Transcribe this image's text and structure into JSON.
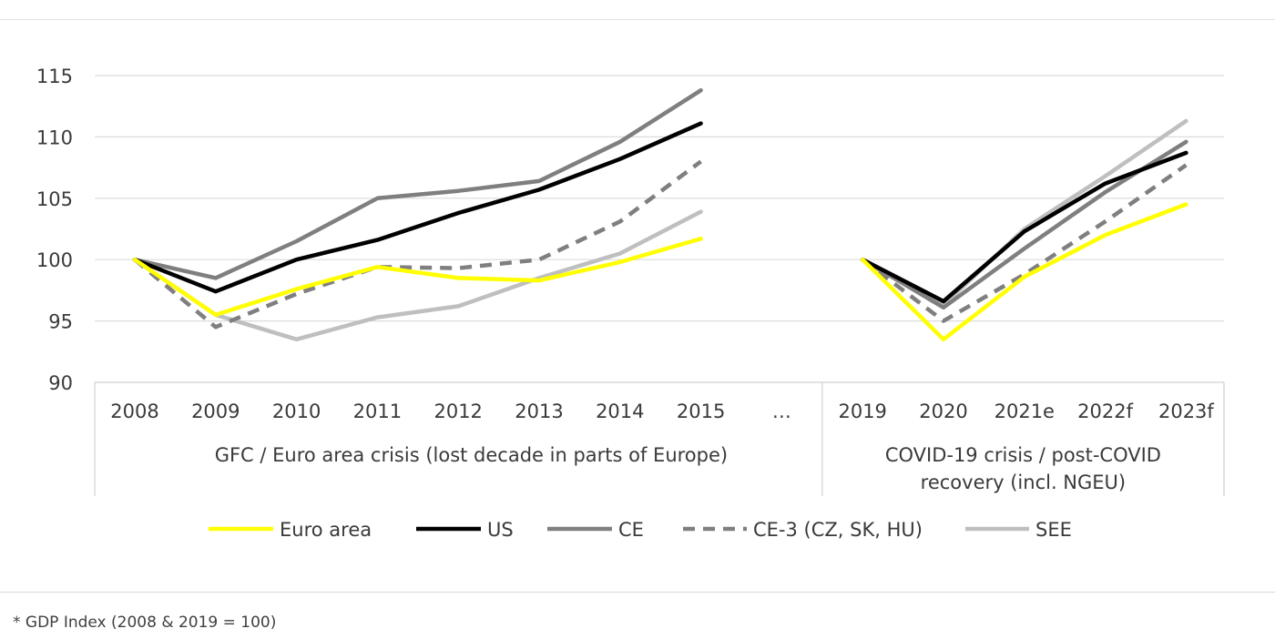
{
  "chart_data": {
    "type": "line",
    "categories": [
      "2008",
      "2009",
      "2010",
      "2011",
      "2012",
      "2013",
      "2014",
      "2015",
      "…",
      "2019",
      "2020",
      "2021e",
      "2022f",
      "2023f"
    ],
    "groups": [
      {
        "label": "GFC / Euro area crisis (lost decade in parts of Europe)"
      },
      {
        "label": "COVID-19 crisis / post-COVID recovery (incl. NGEU)",
        "label_lines": [
          "COVID-19 crisis / post-COVID",
          "recovery (incl. NGEU)"
        ]
      }
    ],
    "ylim": [
      90,
      115
    ],
    "yticks": [
      90,
      95,
      100,
      105,
      110,
      115
    ],
    "grid": true,
    "legend_position": "bottom",
    "series": [
      {
        "name": "Euro area",
        "color": "#ffff00",
        "dashed": false,
        "values": [
          100,
          95.5,
          97.6,
          99.4,
          98.5,
          98.3,
          99.8,
          101.7,
          null,
          100,
          93.5,
          98.6,
          102.0,
          104.5
        ]
      },
      {
        "name": "US",
        "color": "#000000",
        "dashed": false,
        "values": [
          100,
          97.4,
          100.0,
          101.6,
          103.8,
          105.7,
          108.2,
          111.1,
          null,
          100,
          96.6,
          102.3,
          106.2,
          108.7
        ]
      },
      {
        "name": "CE",
        "color": "#7f7f7f",
        "dashed": false,
        "values": [
          100,
          98.5,
          101.5,
          105.0,
          105.6,
          106.4,
          109.6,
          113.8,
          null,
          100,
          96.1,
          100.9,
          105.5,
          109.6
        ]
      },
      {
        "name": "CE-3 (CZ, SK, HU)",
        "color": "#7f7f7f",
        "dashed": true,
        "values": [
          100,
          94.5,
          97.2,
          99.4,
          99.3,
          100.0,
          103.1,
          108.0,
          null,
          100,
          95.0,
          98.8,
          103.1,
          107.7
        ]
      },
      {
        "name": "SEE",
        "color": "#bfbfbf",
        "dashed": false,
        "values": [
          100,
          95.5,
          93.5,
          95.3,
          96.2,
          98.5,
          100.5,
          103.9,
          null,
          100,
          96.3,
          102.5,
          106.8,
          111.3
        ]
      }
    ]
  },
  "footnote": "* GDP Index (2008 & 2019 = 100)"
}
